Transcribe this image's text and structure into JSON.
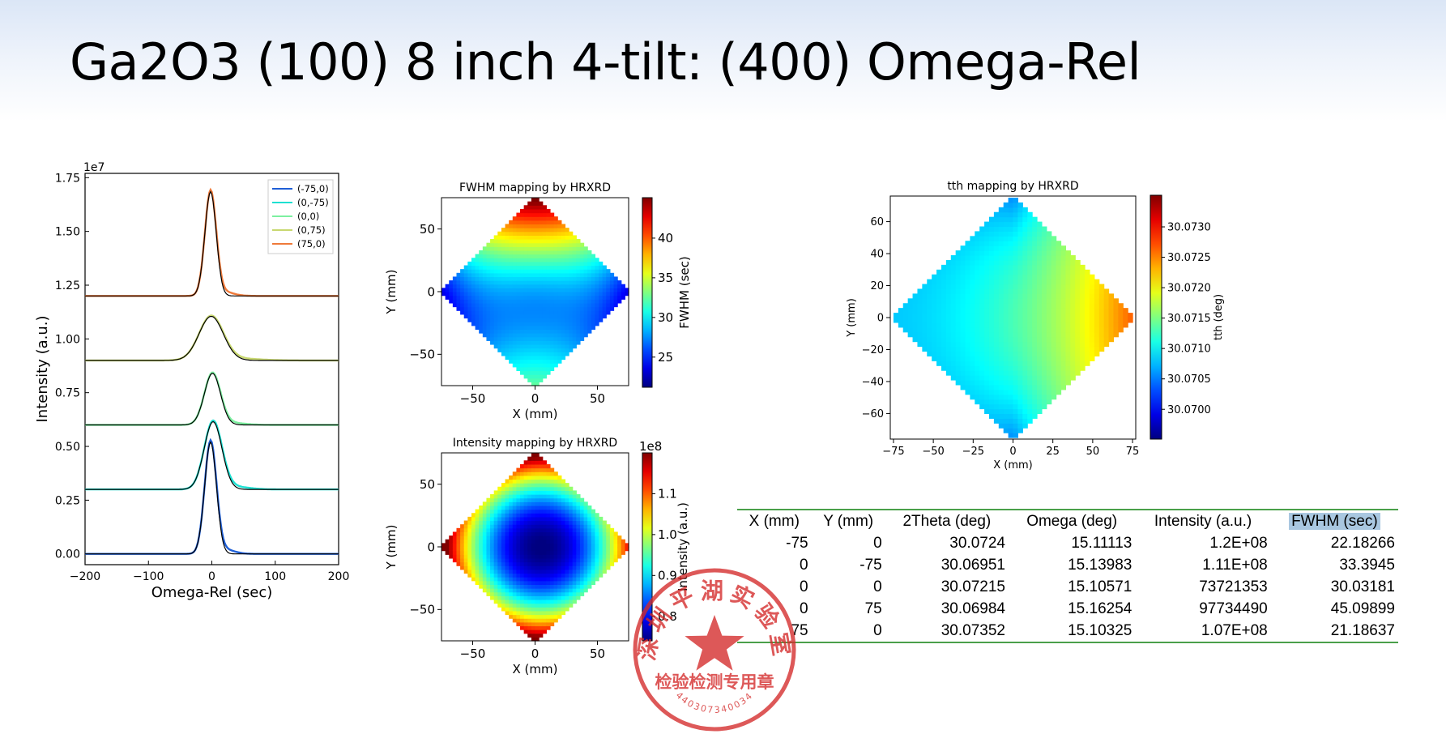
{
  "title": "Ga2O3 (100) 8 inch 4-tilt: (400) Omega-Rel",
  "colors": {
    "series": [
      "#1f5fd6",
      "#1ee0d2",
      "#7df0a0",
      "#c8d870",
      "#ef7a3a"
    ],
    "fit": "#000000",
    "table_rule": "#4aa04a",
    "highlight": "#a9c7e0",
    "stamp": "#d42a2a"
  },
  "chart_data": [
    {
      "type": "line",
      "id": "omega-scans",
      "xlabel": "Omega-Rel (sec)",
      "ylabel": "Intensity (a.u.)",
      "offset_text": "1e7",
      "xlim": [
        -200,
        200
      ],
      "ylim": [
        -0.05,
        1.77
      ],
      "xticks": [
        -200,
        -100,
        0,
        100,
        200
      ],
      "xtick_labels": [
        "−200",
        "−100",
        "0",
        "100",
        "200"
      ],
      "yticks": [
        0.0,
        0.25,
        0.5,
        0.75,
        1.0,
        1.25,
        1.5,
        1.75
      ],
      "ytick_labels": [
        "0.00",
        "0.25",
        "0.50",
        "0.75",
        "1.00",
        "1.25",
        "1.50",
        "1.75"
      ],
      "legend_position": "top-right",
      "series": [
        {
          "name": "(-75,0)",
          "baseline": 0.0,
          "peak": 0.52,
          "center": -2,
          "fwhm": 22
        },
        {
          "name": "(0,-75)",
          "baseline": 0.3,
          "peak": 0.615,
          "center": 2,
          "fwhm": 33
        },
        {
          "name": "(0,0)",
          "baseline": 0.6,
          "peak": 0.84,
          "center": 1,
          "fwhm": 30
        },
        {
          "name": "(0,75)",
          "baseline": 0.9,
          "peak": 1.105,
          "center": -1,
          "fwhm": 45
        },
        {
          "name": "(75,0)",
          "baseline": 1.2,
          "peak": 1.685,
          "center": -2,
          "fwhm": 21
        }
      ]
    },
    {
      "type": "heatmap",
      "id": "fwhm-map",
      "title": "FWHM mapping by HRXRD",
      "xlabel": "X (mm)",
      "ylabel": "Y (mm)",
      "colorbar_label": "FWHM (sec)",
      "xlim": [
        -75,
        75
      ],
      "ylim": [
        -75,
        75
      ],
      "xticks": [
        -50,
        0,
        50
      ],
      "xtick_labels": [
        "−50",
        "0",
        "50"
      ],
      "yticks": [
        -50,
        0,
        50
      ],
      "ytick_labels": [
        "−50",
        "0",
        "50"
      ],
      "colorbar_range": [
        21.2,
        45.1
      ],
      "colorbar_ticks": [
        25,
        30,
        35,
        40
      ],
      "colorbar_tick_labels": [
        "25",
        "30",
        "35",
        "40"
      ]
    },
    {
      "type": "heatmap",
      "id": "intensity-map",
      "title": "Intensity mapping by HRXRD",
      "xlabel": "X (mm)",
      "ylabel": "Y (mm)",
      "colorbar_label": "Intensity (a.u.)",
      "offset_text": "1e8",
      "xlim": [
        -75,
        75
      ],
      "ylim": [
        -75,
        75
      ],
      "xticks": [
        -50,
        0,
        50
      ],
      "xtick_labels": [
        "−50",
        "0",
        "50"
      ],
      "yticks": [
        -50,
        0,
        50
      ],
      "ytick_labels": [
        "−50",
        "0",
        "50"
      ],
      "colorbar_range": [
        0.74,
        1.2
      ],
      "colorbar_ticks": [
        0.8,
        0.9,
        1.0,
        1.1
      ],
      "colorbar_tick_labels": [
        "0.8",
        "0.9",
        "1.0",
        "1.1"
      ]
    },
    {
      "type": "heatmap",
      "id": "tth-map",
      "title": "tth mapping by HRXRD",
      "xlabel": "X (mm)",
      "ylabel": "Y (mm)",
      "colorbar_label": "tth (deg)",
      "xlim": [
        -77,
        77
      ],
      "ylim": [
        -76,
        76
      ],
      "xticks": [
        -75,
        -50,
        -25,
        0,
        25,
        50,
        75
      ],
      "xtick_labels": [
        "−75",
        "−50",
        "−25",
        "0",
        "25",
        "50",
        "75"
      ],
      "yticks": [
        -60,
        -40,
        -20,
        0,
        20,
        40,
        60
      ],
      "ytick_labels": [
        "−60",
        "−40",
        "−20",
        "0",
        "20",
        "40",
        "60"
      ],
      "colorbar_range": [
        30.06951,
        30.07352
      ],
      "colorbar_ticks": [
        30.07,
        30.0705,
        30.071,
        30.0715,
        30.072,
        30.0725,
        30.073
      ],
      "colorbar_tick_labels": [
        "30.0700",
        "30.0705",
        "30.0710",
        "30.0715",
        "30.0720",
        "30.0725",
        "30.0730"
      ]
    },
    {
      "type": "table",
      "id": "results-table",
      "columns": [
        "X (mm)",
        "Y (mm)",
        "2Theta (deg)",
        "Omega (deg)",
        "Intensity (a.u.)",
        "FWHM (sec)"
      ],
      "rows": [
        [
          "-75",
          "0",
          "30.0724",
          "15.11113",
          "1.2E+08",
          "22.18266"
        ],
        [
          "0",
          "-75",
          "30.06951",
          "15.13983",
          "1.11E+08",
          "33.3945"
        ],
        [
          "0",
          "0",
          "30.07215",
          "15.10571",
          "73721353",
          "30.03181"
        ],
        [
          "0",
          "75",
          "30.06984",
          "15.16254",
          "97734490",
          "45.09899"
        ],
        [
          "75",
          "0",
          "30.07352",
          "15.10325",
          "1.07E+08",
          "21.18637"
        ]
      ]
    }
  ],
  "stamp": {
    "top_text": "深圳平湖实验室",
    "bottom_text": "检验检测专用章",
    "number": "440307340034"
  }
}
